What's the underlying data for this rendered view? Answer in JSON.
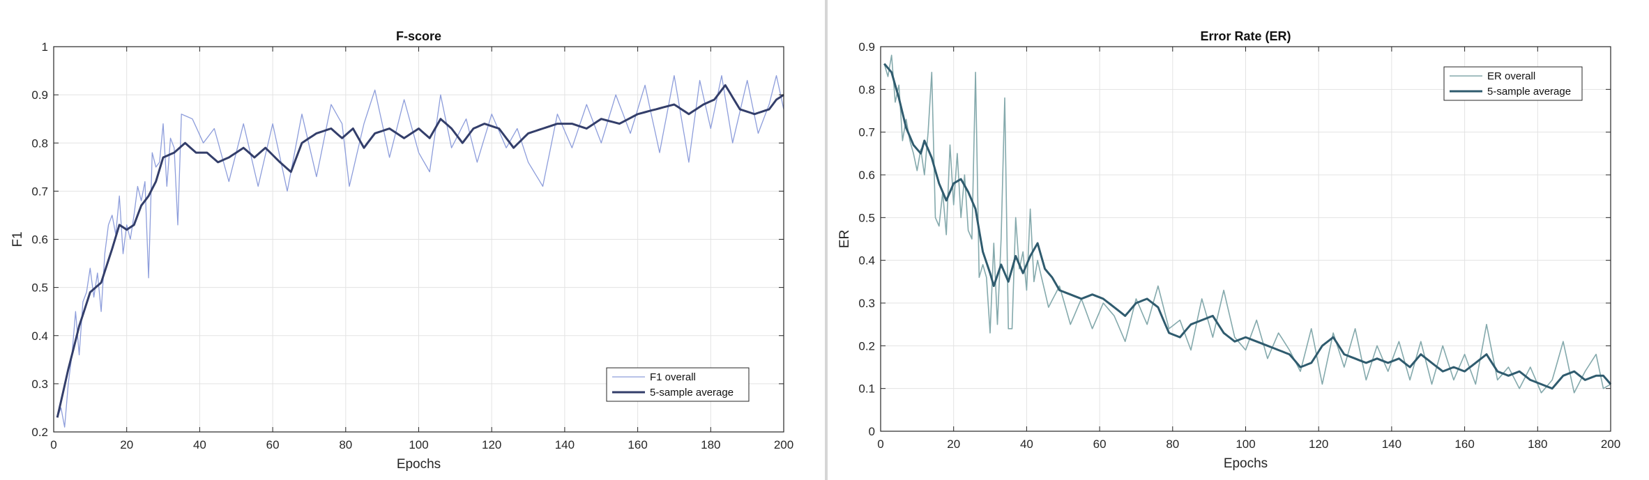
{
  "chart_data": [
    {
      "type": "line",
      "title": "F-score",
      "xlabel": "Epochs",
      "ylabel": "F1",
      "xlim": [
        0,
        200
      ],
      "ylim": [
        0.2,
        1.0
      ],
      "xticks": [
        0,
        20,
        40,
        60,
        80,
        100,
        120,
        140,
        160,
        180,
        200
      ],
      "yticks": [
        0.2,
        0.3,
        0.4,
        0.5,
        0.6,
        0.7,
        0.8,
        0.9,
        1.0
      ],
      "ytick_labels": [
        "0.2",
        "0.3",
        "0.4",
        "0.5",
        "0.6",
        "0.7",
        "0.8",
        "0.9",
        "1"
      ],
      "grid": true,
      "legend_position": "bottom-right",
      "anchors_raw": [
        [
          1,
          0.23
        ],
        [
          2,
          0.25
        ],
        [
          3,
          0.21
        ],
        [
          4,
          0.3
        ],
        [
          5,
          0.36
        ],
        [
          6,
          0.45
        ],
        [
          7,
          0.36
        ],
        [
          8,
          0.47
        ],
        [
          9,
          0.49
        ],
        [
          10,
          0.54
        ],
        [
          11,
          0.48
        ],
        [
          12,
          0.53
        ],
        [
          13,
          0.45
        ],
        [
          14,
          0.57
        ],
        [
          15,
          0.63
        ],
        [
          16,
          0.65
        ],
        [
          17,
          0.61
        ],
        [
          18,
          0.69
        ],
        [
          19,
          0.57
        ],
        [
          20,
          0.63
        ],
        [
          21,
          0.6
        ],
        [
          22,
          0.65
        ],
        [
          23,
          0.71
        ],
        [
          24,
          0.68
        ],
        [
          25,
          0.72
        ],
        [
          26,
          0.52
        ],
        [
          27,
          0.78
        ],
        [
          28,
          0.75
        ],
        [
          29,
          0.76
        ],
        [
          30,
          0.84
        ],
        [
          31,
          0.71
        ],
        [
          32,
          0.81
        ],
        [
          33,
          0.79
        ],
        [
          34,
          0.63
        ],
        [
          35,
          0.86
        ],
        [
          38,
          0.85
        ],
        [
          41,
          0.8
        ],
        [
          44,
          0.83
        ],
        [
          48,
          0.72
        ],
        [
          52,
          0.84
        ],
        [
          56,
          0.71
        ],
        [
          60,
          0.84
        ],
        [
          64,
          0.7
        ],
        [
          68,
          0.86
        ],
        [
          72,
          0.73
        ],
        [
          76,
          0.88
        ],
        [
          79,
          0.84
        ],
        [
          81,
          0.71
        ],
        [
          85,
          0.84
        ],
        [
          88,
          0.91
        ],
        [
          92,
          0.77
        ],
        [
          96,
          0.89
        ],
        [
          100,
          0.78
        ],
        [
          103,
          0.74
        ],
        [
          106,
          0.9
        ],
        [
          109,
          0.79
        ],
        [
          113,
          0.85
        ],
        [
          116,
          0.76
        ],
        [
          120,
          0.86
        ],
        [
          124,
          0.79
        ],
        [
          127,
          0.83
        ],
        [
          130,
          0.76
        ],
        [
          134,
          0.71
        ],
        [
          138,
          0.86
        ],
        [
          142,
          0.79
        ],
        [
          146,
          0.88
        ],
        [
          150,
          0.8
        ],
        [
          154,
          0.9
        ],
        [
          158,
          0.82
        ],
        [
          162,
          0.92
        ],
        [
          166,
          0.78
        ],
        [
          170,
          0.94
        ],
        [
          174,
          0.76
        ],
        [
          177,
          0.93
        ],
        [
          180,
          0.83
        ],
        [
          183,
          0.94
        ],
        [
          186,
          0.8
        ],
        [
          190,
          0.93
        ],
        [
          193,
          0.82
        ],
        [
          196,
          0.88
        ],
        [
          198,
          0.94
        ],
        [
          200,
          0.87
        ]
      ],
      "anchors_avg": [
        [
          1,
          0.23
        ],
        [
          4,
          0.33
        ],
        [
          7,
          0.42
        ],
        [
          10,
          0.49
        ],
        [
          13,
          0.51
        ],
        [
          16,
          0.58
        ],
        [
          18,
          0.63
        ],
        [
          20,
          0.62
        ],
        [
          22,
          0.63
        ],
        [
          24,
          0.67
        ],
        [
          26,
          0.69
        ],
        [
          28,
          0.72
        ],
        [
          30,
          0.77
        ],
        [
          33,
          0.78
        ],
        [
          36,
          0.8
        ],
        [
          39,
          0.78
        ],
        [
          42,
          0.78
        ],
        [
          45,
          0.76
        ],
        [
          48,
          0.77
        ],
        [
          52,
          0.79
        ],
        [
          55,
          0.77
        ],
        [
          58,
          0.79
        ],
        [
          62,
          0.76
        ],
        [
          65,
          0.74
        ],
        [
          68,
          0.8
        ],
        [
          72,
          0.82
        ],
        [
          76,
          0.83
        ],
        [
          79,
          0.81
        ],
        [
          82,
          0.83
        ],
        [
          85,
          0.79
        ],
        [
          88,
          0.82
        ],
        [
          92,
          0.83
        ],
        [
          96,
          0.81
        ],
        [
          100,
          0.83
        ],
        [
          103,
          0.81
        ],
        [
          106,
          0.85
        ],
        [
          109,
          0.83
        ],
        [
          112,
          0.8
        ],
        [
          115,
          0.83
        ],
        [
          118,
          0.84
        ],
        [
          122,
          0.83
        ],
        [
          126,
          0.79
        ],
        [
          130,
          0.82
        ],
        [
          134,
          0.83
        ],
        [
          138,
          0.84
        ],
        [
          142,
          0.84
        ],
        [
          146,
          0.83
        ],
        [
          150,
          0.85
        ],
        [
          155,
          0.84
        ],
        [
          160,
          0.86
        ],
        [
          165,
          0.87
        ],
        [
          170,
          0.88
        ],
        [
          174,
          0.86
        ],
        [
          178,
          0.88
        ],
        [
          181,
          0.89
        ],
        [
          184,
          0.92
        ],
        [
          188,
          0.87
        ],
        [
          192,
          0.86
        ],
        [
          196,
          0.87
        ],
        [
          198,
          0.89
        ],
        [
          200,
          0.9
        ]
      ],
      "series": [
        {
          "name": "F1 overall",
          "color": "#8d9ddb",
          "width": 1.3
        },
        {
          "name": "5-sample average",
          "color": "#333e6a",
          "width": 3
        }
      ]
    },
    {
      "type": "line",
      "title": "Error Rate (ER)",
      "xlabel": "Epochs",
      "ylabel": "ER",
      "xlim": [
        0,
        200
      ],
      "ylim": [
        0,
        0.9
      ],
      "xticks": [
        0,
        20,
        40,
        60,
        80,
        100,
        120,
        140,
        160,
        180,
        200
      ],
      "yticks": [
        0,
        0.1,
        0.2,
        0.3,
        0.4,
        0.5,
        0.6,
        0.7,
        0.8,
        0.9
      ],
      "ytick_labels": [
        "0",
        "0.1",
        "0.2",
        "0.3",
        "0.4",
        "0.5",
        "0.6",
        "0.7",
        "0.8",
        "0.9"
      ],
      "grid": true,
      "legend_position": "top-right",
      "anchors_raw": [
        [
          1,
          0.86
        ],
        [
          2,
          0.83
        ],
        [
          3,
          0.88
        ],
        [
          4,
          0.77
        ],
        [
          5,
          0.81
        ],
        [
          6,
          0.68
        ],
        [
          7,
          0.73
        ],
        [
          8,
          0.68
        ],
        [
          9,
          0.65
        ],
        [
          10,
          0.61
        ],
        [
          11,
          0.66
        ],
        [
          12,
          0.6
        ],
        [
          13,
          0.7
        ],
        [
          14,
          0.84
        ],
        [
          15,
          0.5
        ],
        [
          16,
          0.48
        ],
        [
          17,
          0.56
        ],
        [
          18,
          0.46
        ],
        [
          19,
          0.67
        ],
        [
          20,
          0.53
        ],
        [
          21,
          0.65
        ],
        [
          22,
          0.5
        ],
        [
          23,
          0.6
        ],
        [
          24,
          0.47
        ],
        [
          25,
          0.45
        ],
        [
          26,
          0.84
        ],
        [
          27,
          0.36
        ],
        [
          28,
          0.39
        ],
        [
          29,
          0.36
        ],
        [
          30,
          0.23
        ],
        [
          31,
          0.44
        ],
        [
          32,
          0.25
        ],
        [
          33,
          0.45
        ],
        [
          34,
          0.78
        ],
        [
          35,
          0.24
        ],
        [
          36,
          0.24
        ],
        [
          37,
          0.5
        ],
        [
          38,
          0.38
        ],
        [
          39,
          0.42
        ],
        [
          40,
          0.33
        ],
        [
          41,
          0.52
        ],
        [
          42,
          0.35
        ],
        [
          43,
          0.4
        ],
        [
          46,
          0.29
        ],
        [
          49,
          0.34
        ],
        [
          52,
          0.25
        ],
        [
          55,
          0.31
        ],
        [
          58,
          0.24
        ],
        [
          61,
          0.3
        ],
        [
          64,
          0.27
        ],
        [
          67,
          0.21
        ],
        [
          70,
          0.31
        ],
        [
          73,
          0.25
        ],
        [
          76,
          0.34
        ],
        [
          79,
          0.24
        ],
        [
          82,
          0.26
        ],
        [
          85,
          0.19
        ],
        [
          88,
          0.31
        ],
        [
          91,
          0.22
        ],
        [
          94,
          0.33
        ],
        [
          97,
          0.22
        ],
        [
          100,
          0.19
        ],
        [
          103,
          0.26
        ],
        [
          106,
          0.17
        ],
        [
          109,
          0.23
        ],
        [
          112,
          0.19
        ],
        [
          115,
          0.14
        ],
        [
          118,
          0.24
        ],
        [
          121,
          0.11
        ],
        [
          124,
          0.23
        ],
        [
          127,
          0.15
        ],
        [
          130,
          0.24
        ],
        [
          133,
          0.12
        ],
        [
          136,
          0.2
        ],
        [
          139,
          0.14
        ],
        [
          142,
          0.21
        ],
        [
          145,
          0.12
        ],
        [
          148,
          0.21
        ],
        [
          151,
          0.11
        ],
        [
          154,
          0.2
        ],
        [
          157,
          0.12
        ],
        [
          160,
          0.18
        ],
        [
          163,
          0.11
        ],
        [
          166,
          0.25
        ],
        [
          169,
          0.12
        ],
        [
          172,
          0.15
        ],
        [
          175,
          0.1
        ],
        [
          178,
          0.15
        ],
        [
          181,
          0.09
        ],
        [
          184,
          0.12
        ],
        [
          187,
          0.21
        ],
        [
          190,
          0.09
        ],
        [
          193,
          0.14
        ],
        [
          196,
          0.18
        ],
        [
          198,
          0.1
        ],
        [
          200,
          0.11
        ]
      ],
      "anchors_avg": [
        [
          1,
          0.86
        ],
        [
          3,
          0.84
        ],
        [
          5,
          0.78
        ],
        [
          7,
          0.71
        ],
        [
          9,
          0.67
        ],
        [
          11,
          0.65
        ],
        [
          12,
          0.68
        ],
        [
          14,
          0.64
        ],
        [
          16,
          0.58
        ],
        [
          18,
          0.54
        ],
        [
          20,
          0.58
        ],
        [
          22,
          0.59
        ],
        [
          24,
          0.56
        ],
        [
          26,
          0.52
        ],
        [
          28,
          0.42
        ],
        [
          30,
          0.37
        ],
        [
          31,
          0.34
        ],
        [
          33,
          0.39
        ],
        [
          35,
          0.35
        ],
        [
          37,
          0.41
        ],
        [
          39,
          0.37
        ],
        [
          41,
          0.41
        ],
        [
          43,
          0.44
        ],
        [
          45,
          0.38
        ],
        [
          47,
          0.36
        ],
        [
          49,
          0.33
        ],
        [
          52,
          0.32
        ],
        [
          55,
          0.31
        ],
        [
          58,
          0.32
        ],
        [
          61,
          0.31
        ],
        [
          64,
          0.29
        ],
        [
          67,
          0.27
        ],
        [
          70,
          0.3
        ],
        [
          73,
          0.31
        ],
        [
          76,
          0.29
        ],
        [
          79,
          0.23
        ],
        [
          82,
          0.22
        ],
        [
          85,
          0.25
        ],
        [
          88,
          0.26
        ],
        [
          91,
          0.27
        ],
        [
          94,
          0.23
        ],
        [
          97,
          0.21
        ],
        [
          100,
          0.22
        ],
        [
          103,
          0.21
        ],
        [
          106,
          0.2
        ],
        [
          109,
          0.19
        ],
        [
          112,
          0.18
        ],
        [
          115,
          0.15
        ],
        [
          118,
          0.16
        ],
        [
          121,
          0.2
        ],
        [
          124,
          0.22
        ],
        [
          127,
          0.18
        ],
        [
          130,
          0.17
        ],
        [
          133,
          0.16
        ],
        [
          136,
          0.17
        ],
        [
          139,
          0.16
        ],
        [
          142,
          0.17
        ],
        [
          145,
          0.15
        ],
        [
          148,
          0.18
        ],
        [
          151,
          0.16
        ],
        [
          154,
          0.14
        ],
        [
          157,
          0.15
        ],
        [
          160,
          0.14
        ],
        [
          163,
          0.16
        ],
        [
          166,
          0.18
        ],
        [
          169,
          0.14
        ],
        [
          172,
          0.13
        ],
        [
          175,
          0.14
        ],
        [
          178,
          0.12
        ],
        [
          181,
          0.11
        ],
        [
          184,
          0.1
        ],
        [
          187,
          0.13
        ],
        [
          190,
          0.14
        ],
        [
          193,
          0.12
        ],
        [
          196,
          0.13
        ],
        [
          198,
          0.13
        ],
        [
          200,
          0.11
        ]
      ],
      "series": [
        {
          "name": "ER overall",
          "color": "#84a9ac",
          "width": 1.6
        },
        {
          "name": "5-sample average",
          "color": "#2f5b6e",
          "width": 3
        }
      ]
    }
  ]
}
